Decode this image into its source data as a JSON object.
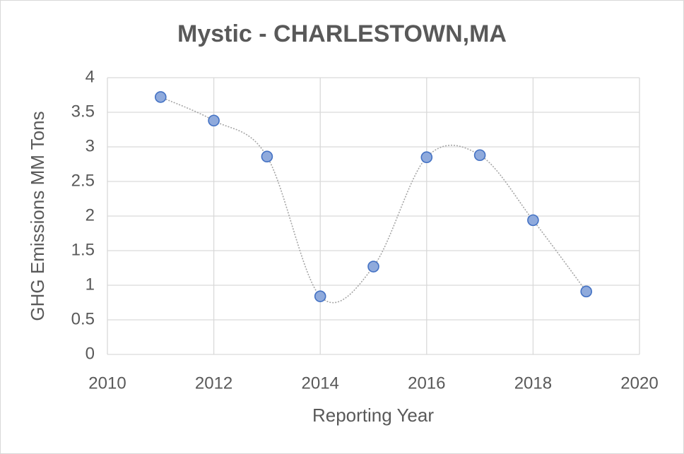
{
  "chart_data": {
    "type": "scatter",
    "title": "Mystic - CHARLESTOWN,MA",
    "xlabel": "Reporting Year",
    "ylabel": "GHG Emissions MM Tons",
    "x": [
      2011,
      2012,
      2013,
      2014,
      2015,
      2016,
      2017,
      2018,
      2019
    ],
    "values": [
      3.72,
      3.38,
      2.86,
      0.84,
      1.27,
      2.85,
      2.88,
      1.94,
      0.91
    ],
    "color": "#8faadc",
    "marker_edge_color": "#4472c4",
    "line_color": "#a6a6a6",
    "smooth": true,
    "xlim": [
      2010,
      2020
    ],
    "xticks": [
      2010,
      2012,
      2014,
      2016,
      2018,
      2020
    ],
    "ylim": [
      0,
      4
    ],
    "yticks": [
      0,
      0.5,
      1,
      1.5,
      2,
      2.5,
      3,
      3.5,
      4
    ],
    "grid": true
  }
}
